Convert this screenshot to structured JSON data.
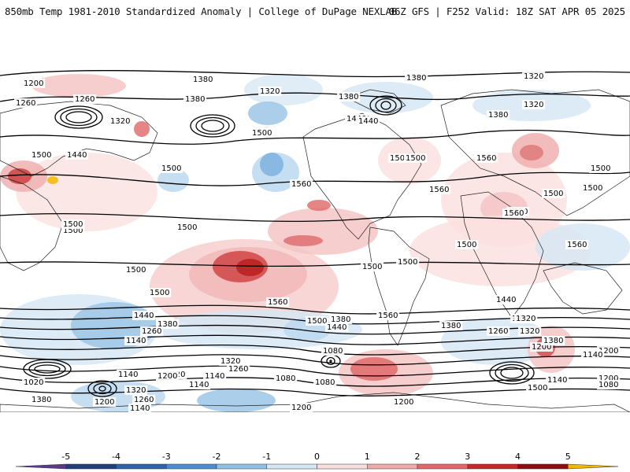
{
  "header": {
    "left_title": "850mb Temp 1981-2010 Standardized Anomaly | College of DuPage NEXLAB",
    "right_title": "06Z GFS | F252 Valid: 18Z SAT APR 05 2025"
  },
  "colorbar": {
    "ticks": [
      "-5",
      "-4",
      "-3",
      "-2",
      "-1",
      "0",
      "1",
      "2",
      "3",
      "4",
      "5"
    ],
    "colors": [
      "#5b3a8c",
      "#1f3f7a",
      "#2e63a8",
      "#4a8ed0",
      "#8fc0e6",
      "#d6e7f4",
      "#f9dddd",
      "#f0a9a9",
      "#e06a6a",
      "#c62828",
      "#8a0e12",
      "#f2b800"
    ]
  },
  "map": {
    "contour_labels": [
      "1200",
      "1380",
      "1320",
      "1380",
      "1320",
      "1260",
      "1260",
      "1320",
      "1380",
      "1380",
      "1440",
      "1320",
      "1380",
      "1500",
      "1440",
      "1500",
      "1440",
      "1500",
      "1560",
      "1500",
      "1560",
      "1500",
      "1500",
      "1500",
      "1560",
      "1500",
      "1500",
      "1500",
      "1500",
      "1500",
      "1560",
      "1560",
      "1500",
      "1500",
      "1500",
      "1440",
      "1380",
      "1260",
      "1500",
      "1560",
      "1440",
      "1380",
      "1440",
      "1320",
      "1260",
      "1200",
      "1140",
      "1080",
      "1320",
      "1260",
      "1200",
      "1380",
      "1320",
      "1140",
      "1200",
      "1140",
      "1080",
      "1080",
      "1200",
      "1140",
      "1200",
      "1020",
      "1380",
      "1320",
      "1260",
      "1200",
      "1140",
      "1200",
      "1140",
      "1080",
      "1320",
      "1380",
      "1440",
      "1560",
      "1500",
      "1500",
      "1500",
      "1140",
      "1260"
    ]
  }
}
